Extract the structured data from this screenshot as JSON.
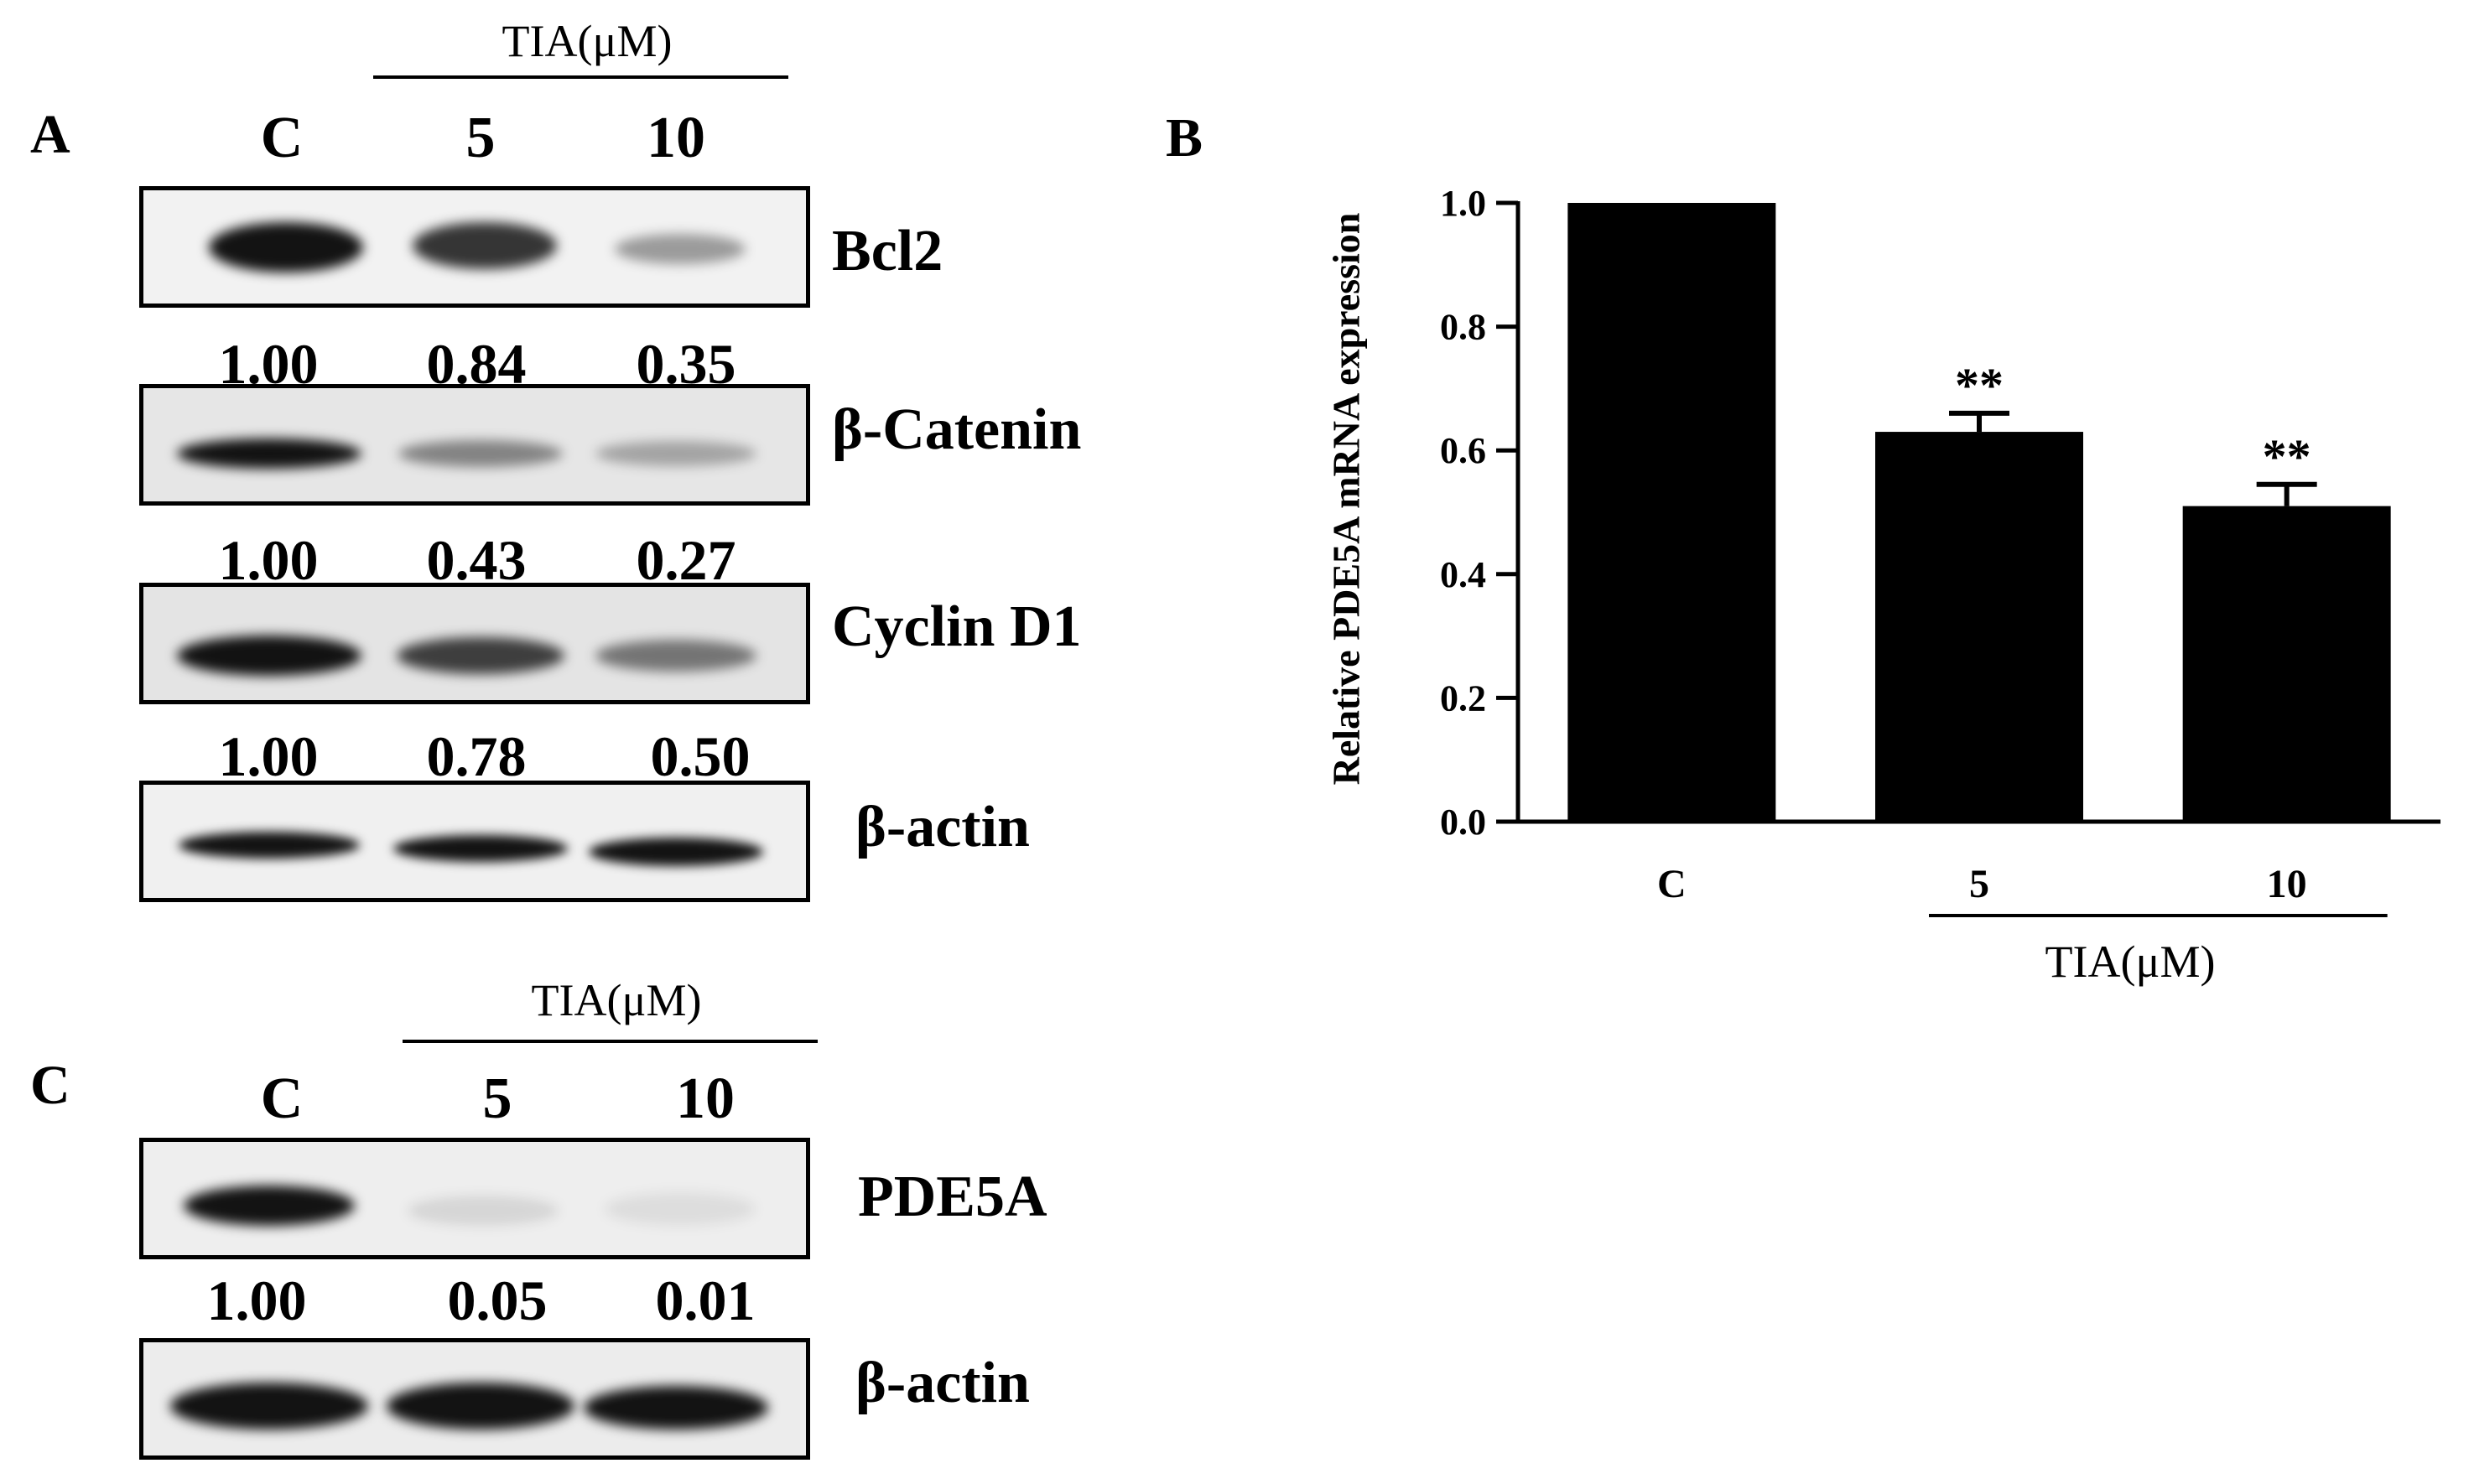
{
  "panel_a": {
    "letter": "A",
    "treatment_label": "TIA(μM)",
    "lanes": [
      "C",
      "5",
      "10"
    ],
    "blots": [
      {
        "protein": "Bcl2",
        "intensity": [
          1.0,
          0.84,
          0.35
        ]
      },
      {
        "protein": "β-Catenin",
        "intensity": [
          1.0,
          0.43,
          0.27
        ]
      },
      {
        "protein": "Cyclin D1",
        "intensity": [
          1.0,
          0.78,
          0.5
        ]
      },
      {
        "protein": "β-actin",
        "intensity": [
          1.0,
          1.0,
          1.0
        ]
      }
    ],
    "quantifications": [
      [
        "1.00",
        "0.84",
        "0.35"
      ],
      [
        "1.00",
        "0.43",
        "0.27"
      ],
      [
        "1.00",
        "0.78",
        "0.50"
      ]
    ]
  },
  "panel_b": {
    "letter": "B",
    "treatment_label": "TIA(μM)"
  },
  "panel_c": {
    "letter": "C",
    "treatment_label": "TIA(μM)",
    "lanes": [
      "C",
      "5",
      "10"
    ],
    "blots": [
      {
        "protein": "PDE5A",
        "intensity": [
          1.0,
          0.05,
          0.01
        ]
      },
      {
        "protein": "β-actin",
        "intensity": [
          1.0,
          1.0,
          1.0
        ]
      }
    ],
    "quantifications": [
      [
        "1.00",
        "0.05",
        "0.01"
      ]
    ]
  },
  "chart_data": {
    "type": "bar",
    "categories": [
      "C",
      "5",
      "10"
    ],
    "values": [
      1.0,
      0.63,
      0.51
    ],
    "errors": [
      0.0,
      0.03,
      0.035
    ],
    "significance": [
      "",
      "**",
      "**"
    ],
    "ylabel": "Relative PDE5A mRNA expression",
    "xlabel": "TIA(μM)",
    "ylim": [
      0,
      1.0
    ],
    "yticks": [
      "0.0",
      "0.2",
      "0.4",
      "0.6",
      "0.8",
      "1.0"
    ],
    "bar_color": "#000000"
  }
}
